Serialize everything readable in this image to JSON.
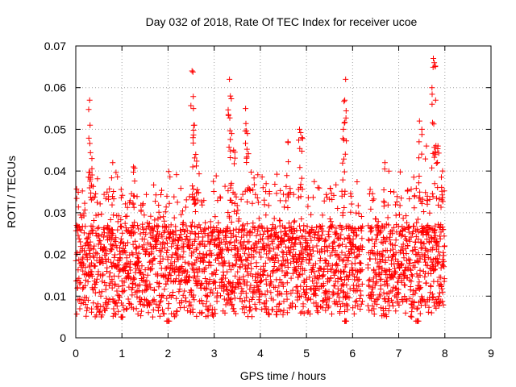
{
  "chart_data": {
    "type": "scatter",
    "title": "Day 032 of 2018, Rate Of TEC Index for receiver ucoe",
    "xlabel": "GPS time / hours",
    "ylabel": "ROTI / TECUs",
    "xlim": [
      0,
      9
    ],
    "ylim": [
      0,
      0.07
    ],
    "x_ticks": [
      "0",
      "1",
      "2",
      "3",
      "4",
      "5",
      "6",
      "7",
      "8",
      "9"
    ],
    "y_ticks": [
      "0",
      "0.01",
      "0.02",
      "0.03",
      "0.04",
      "0.05",
      "0.06",
      "0.07"
    ],
    "grid": true,
    "marker": "+",
    "marker_color": "#ff0000",
    "series": [
      {
        "name": "ROTI",
        "description": "Dense cloud of ROTI samples from 0 to ~8 h, mostly between 0.005 and 0.03 TECUs",
        "base_range": [
          0.005,
          0.03
        ],
        "x_range": [
          0.0,
          8.0
        ],
        "peaks": [
          {
            "x": 0.3,
            "y": 0.057
          },
          {
            "x": 0.31,
            "y": 0.051
          },
          {
            "x": 0.35,
            "y": 0.043
          },
          {
            "x": 0.8,
            "y": 0.042
          },
          {
            "x": 1.25,
            "y": 0.041
          },
          {
            "x": 2.52,
            "y": 0.064
          },
          {
            "x": 2.55,
            "y": 0.055
          },
          {
            "x": 2.57,
            "y": 0.051
          },
          {
            "x": 2.6,
            "y": 0.044
          },
          {
            "x": 3.33,
            "y": 0.062
          },
          {
            "x": 3.35,
            "y": 0.058
          },
          {
            "x": 3.38,
            "y": 0.049
          },
          {
            "x": 3.42,
            "y": 0.045
          },
          {
            "x": 3.68,
            "y": 0.055
          },
          {
            "x": 3.72,
            "y": 0.049
          },
          {
            "x": 4.6,
            "y": 0.047
          },
          {
            "x": 4.85,
            "y": 0.05
          },
          {
            "x": 4.9,
            "y": 0.048
          },
          {
            "x": 5.85,
            "y": 0.062
          },
          {
            "x": 5.83,
            "y": 0.057
          },
          {
            "x": 5.8,
            "y": 0.05
          },
          {
            "x": 6.7,
            "y": 0.042
          },
          {
            "x": 7.45,
            "y": 0.052
          },
          {
            "x": 7.5,
            "y": 0.05
          },
          {
            "x": 7.6,
            "y": 0.046
          },
          {
            "x": 7.75,
            "y": 0.067
          },
          {
            "x": 7.77,
            "y": 0.066
          },
          {
            "x": 7.72,
            "y": 0.06
          },
          {
            "x": 7.8,
            "y": 0.057
          },
          {
            "x": 7.85,
            "y": 0.046
          },
          {
            "x": 7.95,
            "y": 0.04
          },
          {
            "x": 1.0,
            "y": 0.005
          },
          {
            "x": 2.0,
            "y": 0.004
          },
          {
            "x": 5.85,
            "y": 0.004
          },
          {
            "x": 7.4,
            "y": 0.004
          }
        ]
      }
    ]
  }
}
